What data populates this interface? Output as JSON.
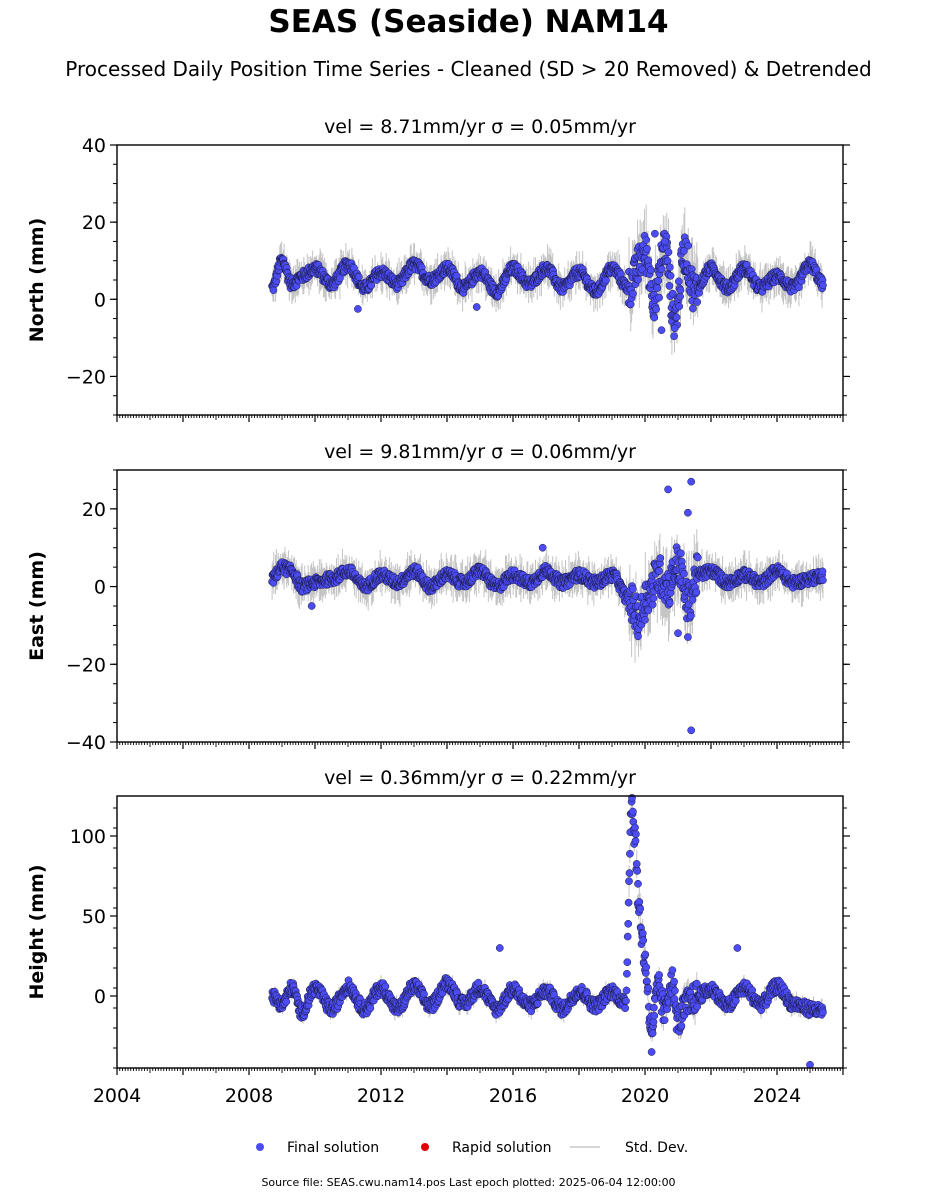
{
  "title": "SEAS (Seaside) NAM14",
  "subtitle": "Processed Daily Position Time Series - Cleaned (SD > 20 Removed) & Detrended",
  "source_note": "Source file: SEAS.cwu.nam14.pos  Last epoch plotted: 2025-06-04 12:00:00",
  "colors": {
    "final": "#4c4cf5",
    "rapid": "#dd0000",
    "sd": "#b0b0b0",
    "axis": "#000000"
  },
  "legend": [
    {
      "label": "Final solution",
      "marker": "dot",
      "color": "#4c4cf5"
    },
    {
      "label": "Rapid solution",
      "marker": "dot",
      "color": "#dd0000"
    },
    {
      "label": "Std. Dev.",
      "marker": "line",
      "color": "#c8c8c8"
    }
  ],
  "chart_data": [
    {
      "type": "scatter",
      "component": "north",
      "title": "vel = 8.71mm/yr   σ = 0.05mm/yr",
      "ylabel": "North (mm)",
      "xlim": [
        2004.0,
        2026.0
      ],
      "ylim": [
        -30,
        40
      ],
      "yticks": [
        -20,
        0,
        20,
        40
      ],
      "ytick_labels": [
        "−20",
        "0",
        "20",
        "40"
      ],
      "xtick_labels_shown": false,
      "series_description": "~6 mm seasonal oscillation around 5 mm",
      "samples": [
        [
          2008.7,
          3
        ],
        [
          2009.0,
          10
        ],
        [
          2009.3,
          4
        ],
        [
          2009.6,
          6
        ],
        [
          2010.0,
          8
        ],
        [
          2010.5,
          4
        ],
        [
          2011.0,
          9
        ],
        [
          2011.5,
          3
        ],
        [
          2012.0,
          7
        ],
        [
          2012.5,
          4
        ],
        [
          2013.0,
          9
        ],
        [
          2013.5,
          5
        ],
        [
          2014.0,
          8
        ],
        [
          2014.5,
          3
        ],
        [
          2015.0,
          7
        ],
        [
          2015.5,
          2
        ],
        [
          2016.0,
          8
        ],
        [
          2016.5,
          4
        ],
        [
          2017.0,
          8
        ],
        [
          2017.5,
          3
        ],
        [
          2018.0,
          7
        ],
        [
          2018.5,
          2
        ],
        [
          2019.0,
          8
        ],
        [
          2019.5,
          3
        ],
        [
          2020.0,
          12
        ],
        [
          2020.3,
          0
        ],
        [
          2020.6,
          14
        ],
        [
          2020.9,
          -5
        ],
        [
          2021.2,
          12
        ],
        [
          2021.5,
          2
        ],
        [
          2022.0,
          8
        ],
        [
          2022.5,
          3
        ],
        [
          2023.0,
          8
        ],
        [
          2023.5,
          3
        ],
        [
          2024.0,
          6
        ],
        [
          2024.5,
          3
        ],
        [
          2025.0,
          9
        ],
        [
          2025.4,
          4
        ]
      ],
      "outliers": [
        [
          2011.3,
          -2.5
        ],
        [
          2014.9,
          -2
        ],
        [
          2020.3,
          17
        ],
        [
          2020.6,
          15
        ],
        [
          2020.5,
          -8
        ],
        [
          2020.9,
          -7.5
        ]
      ]
    },
    {
      "type": "scatter",
      "component": "east",
      "title": "vel = 9.81mm/yr   σ = 0.06mm/yr",
      "ylabel": "East (mm)",
      "xlim": [
        2004.0,
        2026.0
      ],
      "ylim": [
        -40,
        30
      ],
      "yticks": [
        -40,
        -20,
        0,
        20
      ],
      "ytick_labels": [
        "−40",
        "−20",
        "0",
        "20"
      ],
      "xtick_labels_shown": false,
      "series_description": "small seasonal oscillation near 1-3 mm, large scatter 2019.5-2021.5",
      "samples": [
        [
          2008.7,
          2
        ],
        [
          2009.0,
          5
        ],
        [
          2009.3,
          4
        ],
        [
          2009.6,
          0
        ],
        [
          2010.0,
          1
        ],
        [
          2010.5,
          2
        ],
        [
          2011.0,
          4
        ],
        [
          2011.5,
          0
        ],
        [
          2012.0,
          3
        ],
        [
          2012.5,
          1
        ],
        [
          2013.0,
          4
        ],
        [
          2013.5,
          0
        ],
        [
          2014.0,
          3
        ],
        [
          2014.5,
          1
        ],
        [
          2015.0,
          4
        ],
        [
          2015.5,
          0
        ],
        [
          2016.0,
          3
        ],
        [
          2016.5,
          1
        ],
        [
          2017.0,
          4
        ],
        [
          2017.5,
          1
        ],
        [
          2018.0,
          3
        ],
        [
          2018.5,
          1
        ],
        [
          2019.0,
          3
        ],
        [
          2019.5,
          -3
        ],
        [
          2019.8,
          -8
        ],
        [
          2020.1,
          -2
        ],
        [
          2020.4,
          3
        ],
        [
          2020.7,
          0
        ],
        [
          2021.0,
          6
        ],
        [
          2021.3,
          -4
        ],
        [
          2021.6,
          3
        ],
        [
          2022.0,
          4
        ],
        [
          2022.5,
          1
        ],
        [
          2023.0,
          3
        ],
        [
          2023.5,
          1
        ],
        [
          2024.0,
          4
        ],
        [
          2024.5,
          1
        ],
        [
          2025.0,
          2
        ],
        [
          2025.4,
          3
        ]
      ],
      "outliers": [
        [
          2009.9,
          -5
        ],
        [
          2016.9,
          10
        ],
        [
          2020.7,
          25
        ],
        [
          2021.4,
          27
        ],
        [
          2021.3,
          19
        ],
        [
          2021.0,
          -12
        ],
        [
          2021.3,
          -13
        ],
        [
          2021.4,
          -37
        ]
      ]
    },
    {
      "type": "scatter",
      "component": "height",
      "title": "vel = 0.36mm/yr   σ = 0.22mm/yr",
      "ylabel": "Height (mm)",
      "xlim": [
        2004.0,
        2026.0
      ],
      "ylim": [
        -45,
        125
      ],
      "yticks": [
        0,
        50,
        100
      ],
      "ytick_labels": [
        "0",
        "50",
        "100"
      ],
      "xticks": [
        2004,
        2008,
        2012,
        2016,
        2020,
        2024
      ],
      "xtick_labels": [
        "2004",
        "2008",
        "2012",
        "2016",
        "2020",
        "2024"
      ],
      "xtick_labels_shown": true,
      "series_description": "noisy seasonal signal near 0 mm with a transient spike to ~120 mm near 2019.6 decaying through 2020",
      "samples": [
        [
          2008.7,
          0
        ],
        [
          2009.0,
          -5
        ],
        [
          2009.3,
          5
        ],
        [
          2009.6,
          -10
        ],
        [
          2010.0,
          5
        ],
        [
          2010.5,
          -8
        ],
        [
          2011.0,
          6
        ],
        [
          2011.5,
          -8
        ],
        [
          2012.0,
          5
        ],
        [
          2012.5,
          -8
        ],
        [
          2013.0,
          6
        ],
        [
          2013.5,
          -6
        ],
        [
          2014.0,
          8
        ],
        [
          2014.5,
          -5
        ],
        [
          2015.0,
          5
        ],
        [
          2015.5,
          -8
        ],
        [
          2016.0,
          4
        ],
        [
          2016.5,
          -6
        ],
        [
          2017.0,
          3
        ],
        [
          2017.5,
          -8
        ],
        [
          2018.0,
          3
        ],
        [
          2018.5,
          -6
        ],
        [
          2019.0,
          3
        ],
        [
          2019.4,
          -5
        ],
        [
          2019.6,
          120
        ],
        [
          2019.7,
          100
        ],
        [
          2019.8,
          60
        ],
        [
          2019.9,
          40
        ],
        [
          2020.0,
          20
        ],
        [
          2020.2,
          -20
        ],
        [
          2020.4,
          5
        ],
        [
          2020.6,
          -10
        ],
        [
          2020.8,
          10
        ],
        [
          2021.0,
          -15
        ],
        [
          2021.3,
          -5
        ],
        [
          2021.6,
          0
        ],
        [
          2022.0,
          4
        ],
        [
          2022.5,
          -6
        ],
        [
          2023.0,
          5
        ],
        [
          2023.5,
          -5
        ],
        [
          2024.0,
          6
        ],
        [
          2024.5,
          -5
        ],
        [
          2025.0,
          -8
        ],
        [
          2025.4,
          -10
        ]
      ],
      "outliers": [
        [
          2015.6,
          30
        ],
        [
          2022.8,
          30
        ],
        [
          2020.2,
          -35
        ],
        [
          2025.0,
          -43
        ]
      ]
    }
  ]
}
